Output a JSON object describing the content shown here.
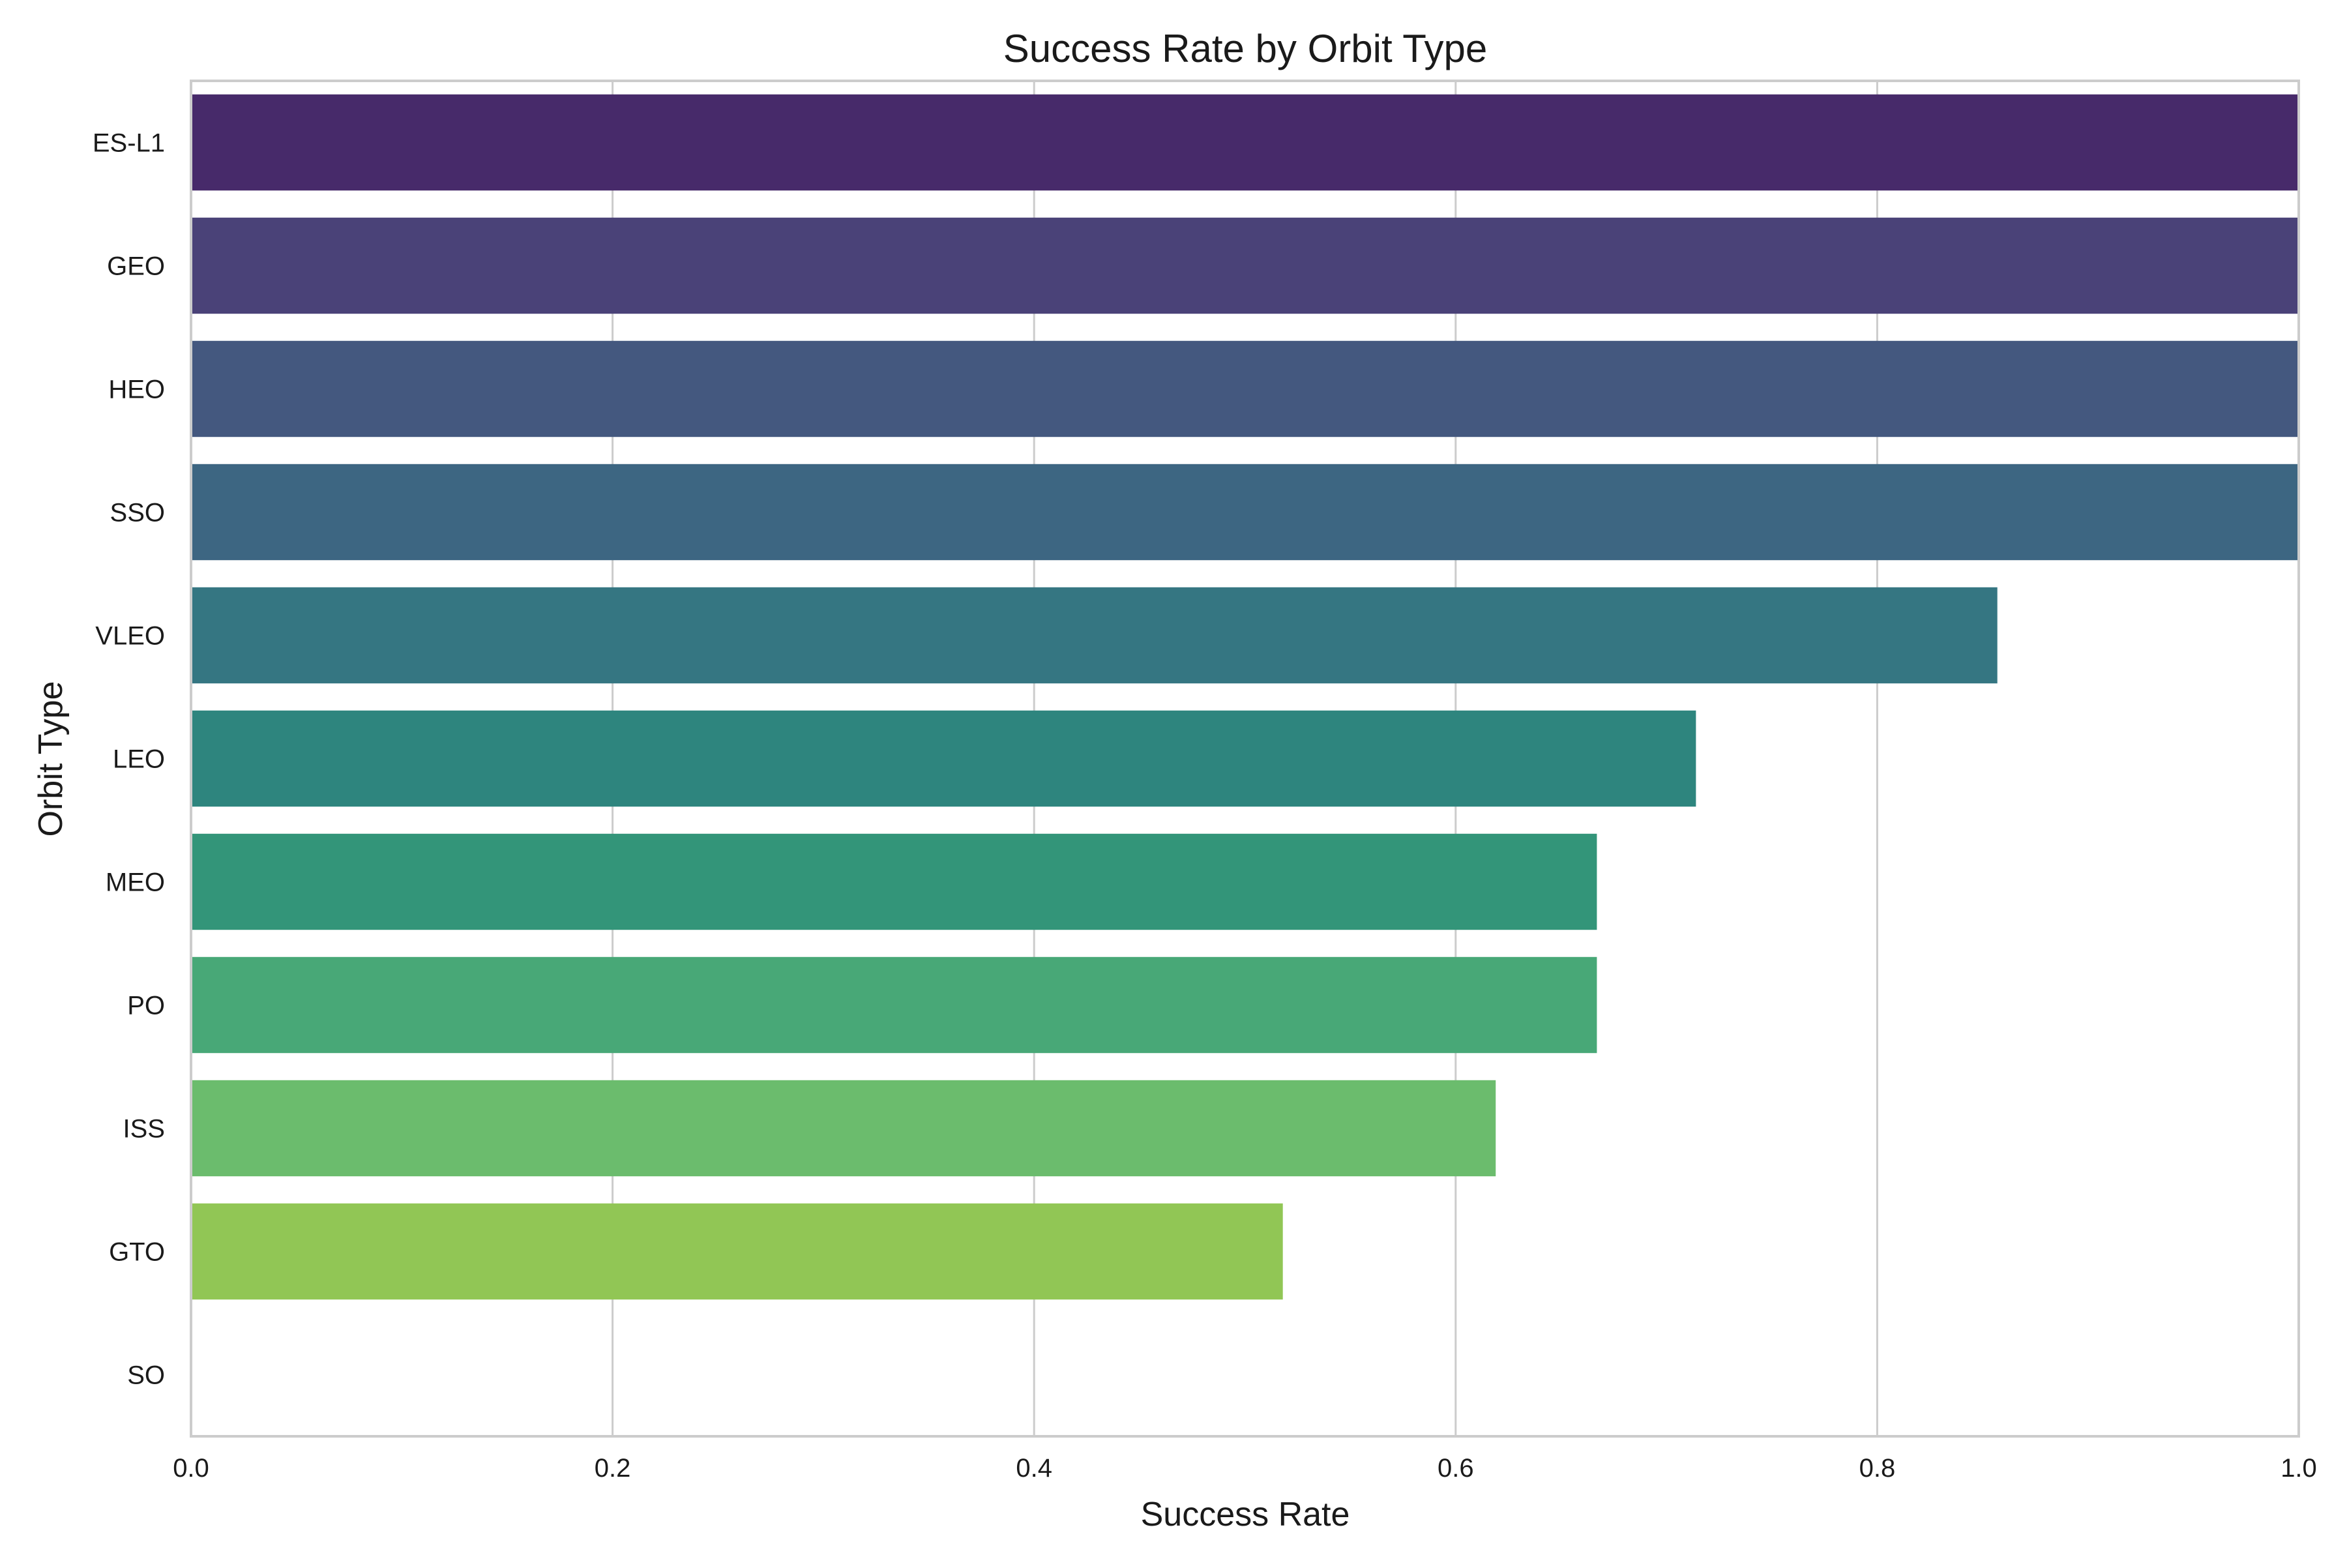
{
  "chart_data": {
    "type": "bar",
    "orientation": "horizontal",
    "title": "Success Rate by Orbit Type",
    "xlabel": "Success Rate",
    "ylabel": "Orbit Type",
    "xlim": [
      0.0,
      1.0
    ],
    "xticks": [
      "0.0",
      "0.2",
      "0.4",
      "0.6",
      "0.8",
      "1.0"
    ],
    "grid": "vertical",
    "categories": [
      "ES-L1",
      "GEO",
      "HEO",
      "SSO",
      "VLEO",
      "LEO",
      "MEO",
      "PO",
      "ISS",
      "GTO",
      "SO"
    ],
    "values": [
      1.0,
      1.0,
      1.0,
      1.0,
      0.857,
      0.714,
      0.667,
      0.667,
      0.619,
      0.518,
      0.0
    ],
    "colors": [
      "#472a6a",
      "#4a4278",
      "#44587f",
      "#3d6682",
      "#357682",
      "#2e857e",
      "#339579",
      "#48a877",
      "#6bbc6d",
      "#91c655",
      "#a6db3a"
    ]
  }
}
